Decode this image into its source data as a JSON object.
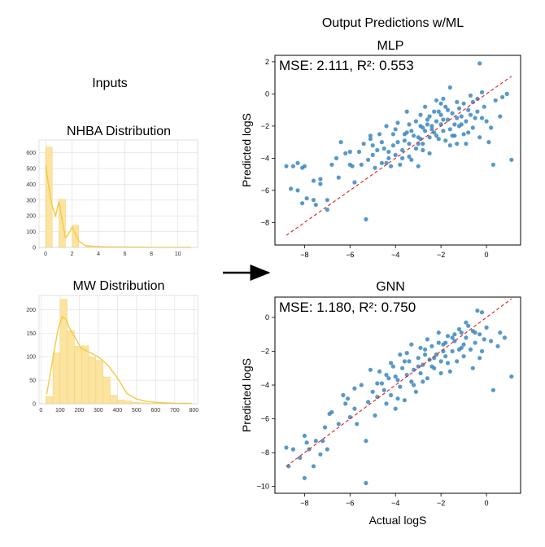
{
  "figure_title": "Output Predictions w/ML",
  "inputs_label": "Inputs",
  "colors": {
    "hist_bar": "#fbe3a0",
    "hist_edge": "#f5cf5e",
    "kde": "#f7c843",
    "scatter": "#3a87c0",
    "diag": "#e41a1c",
    "grid": "#dddddd"
  },
  "chart_data": [
    {
      "type": "bar",
      "title": "NHBA Distribution",
      "xlabel": "",
      "ylabel": "",
      "x_ticks": [
        0,
        2,
        4,
        6,
        8,
        10
      ],
      "y_ticks": [
        0,
        100,
        200,
        300,
        400,
        500,
        600
      ],
      "xlim": [
        -0.5,
        11.5
      ],
      "ylim": [
        0,
        680
      ],
      "bin_start": 0,
      "bin_width": 0.5,
      "values": [
        635,
        0,
        305,
        0,
        140,
        0,
        10,
        0,
        3,
        0,
        1,
        0,
        1,
        0,
        0,
        0,
        0,
        0,
        0,
        0,
        1
      ],
      "kde_x": [
        0,
        0.3,
        0.5,
        0.75,
        1,
        1.25,
        1.5,
        1.75,
        2,
        2.5,
        3,
        3.5,
        4,
        5,
        6,
        7,
        8,
        9,
        10,
        11
      ],
      "kde_y": [
        520,
        350,
        260,
        200,
        290,
        170,
        60,
        90,
        130,
        40,
        12,
        8,
        5,
        3,
        3,
        2,
        1,
        1,
        1,
        1
      ]
    },
    {
      "type": "bar",
      "title": "MW Distribution",
      "xlabel": "",
      "ylabel": "",
      "x_ticks": [
        0,
        100,
        200,
        300,
        400,
        500,
        600,
        700,
        800
      ],
      "y_ticks": [
        0,
        50,
        100,
        150,
        200
      ],
      "xlim": [
        -10,
        820
      ],
      "ylim": [
        0,
        230
      ],
      "bin_start": 25,
      "bin_width": 37.5,
      "values": [
        15,
        108,
        222,
        155,
        122,
        123,
        100,
        92,
        57,
        18,
        8,
        6,
        3,
        2,
        1,
        1,
        1,
        0,
        0,
        1
      ],
      "kde_x": [
        30,
        60,
        90,
        110,
        130,
        150,
        180,
        210,
        250,
        300,
        350,
        400,
        450,
        500,
        550,
        600,
        700,
        790
      ],
      "kde_y": [
        20,
        90,
        160,
        185,
        180,
        160,
        140,
        118,
        110,
        100,
        82,
        55,
        22,
        10,
        5,
        3,
        1,
        1
      ]
    },
    {
      "type": "scatter",
      "title": "MLP",
      "xlabel": "",
      "ylabel": "Predicted logS",
      "annotation": "MSE: 2.111, R²: 0.553",
      "x_ticks": [
        -8,
        -6,
        -4,
        -2,
        0
      ],
      "y_ticks": [
        -8,
        -6,
        -4,
        -2,
        0,
        2
      ],
      "xlim": [
        -9.3,
        1.5
      ],
      "ylim": [
        -9.4,
        2.4
      ],
      "diag": [
        [
          -8.8,
          -8.8
        ],
        [
          1.1,
          1.1
        ]
      ],
      "points": [
        [
          -8.8,
          -4.5
        ],
        [
          -8.5,
          -4.5
        ],
        [
          -8.3,
          -4.3
        ],
        [
          -8.1,
          -4.6
        ],
        [
          -8.0,
          -4.5
        ],
        [
          -8.6,
          -5.9
        ],
        [
          -8.3,
          -6.0
        ],
        [
          -7.9,
          -6.5
        ],
        [
          -8.1,
          -6.8
        ],
        [
          -7.6,
          -6.6
        ],
        [
          -7.5,
          -6.9
        ],
        [
          -7.3,
          -5.3
        ],
        [
          -7.3,
          -5.6
        ],
        [
          -7.0,
          -6.6
        ],
        [
          -7.0,
          -7.2
        ],
        [
          -6.8,
          -4.4
        ],
        [
          -6.5,
          -5.2
        ],
        [
          -6.2,
          -3.7
        ],
        [
          -6.0,
          -3.6
        ],
        [
          -5.9,
          -4.5
        ],
        [
          -5.8,
          -5.5
        ],
        [
          -5.3,
          -7.8
        ],
        [
          -5.5,
          -4.4
        ],
        [
          -5.1,
          -2.6
        ],
        [
          -5.0,
          -3.2
        ],
        [
          -5.0,
          -3.8
        ],
        [
          -4.9,
          -4.6
        ],
        [
          -4.7,
          -2.5
        ],
        [
          -4.6,
          -3.0
        ],
        [
          -4.5,
          -3.4
        ],
        [
          -4.4,
          -4.3
        ],
        [
          -4.3,
          -4.0
        ],
        [
          -4.2,
          -4.5
        ],
        [
          -4.1,
          -3.2
        ],
        [
          -4.0,
          -2.2
        ],
        [
          -3.9,
          -3.0
        ],
        [
          -3.8,
          -4.4
        ],
        [
          -3.7,
          -3.5
        ],
        [
          -3.6,
          -2.9
        ],
        [
          -3.5,
          -2.4
        ],
        [
          -3.4,
          -3.1
        ],
        [
          -3.4,
          -1.9
        ],
        [
          -3.3,
          -4.1
        ],
        [
          -3.2,
          -2.6
        ],
        [
          -3.1,
          -3.4
        ],
        [
          -3.0,
          -2.7
        ],
        [
          -3.0,
          -4.5
        ],
        [
          -2.9,
          -1.3
        ],
        [
          -2.9,
          -2.0
        ],
        [
          -2.8,
          -3.1
        ],
        [
          -2.7,
          -2.3
        ],
        [
          -2.7,
          -0.8
        ],
        [
          -2.6,
          -1.6
        ],
        [
          -2.5,
          -2.7
        ],
        [
          -2.5,
          -3.7
        ],
        [
          -2.4,
          -2.0
        ],
        [
          -2.3,
          -1.1
        ],
        [
          -2.3,
          -2.4
        ],
        [
          -2.2,
          -0.4
        ],
        [
          -2.2,
          -1.7
        ],
        [
          -2.1,
          -2.8
        ],
        [
          -2.0,
          -1.9
        ],
        [
          -2.0,
          -1.3
        ],
        [
          -1.9,
          -2.3
        ],
        [
          -1.8,
          -0.8
        ],
        [
          -1.8,
          -2.9
        ],
        [
          -1.7,
          -1.6
        ],
        [
          -1.6,
          -2.2
        ],
        [
          -1.6,
          0.4
        ],
        [
          -1.5,
          -1.2
        ],
        [
          -1.5,
          -2.6
        ],
        [
          -1.4,
          -1.9
        ],
        [
          -1.3,
          -0.5
        ],
        [
          -1.3,
          -3.1
        ],
        [
          -1.2,
          -2.0
        ],
        [
          -1.1,
          -1.4
        ],
        [
          -1.0,
          -0.6
        ],
        [
          -1.0,
          -2.5
        ],
        [
          -0.9,
          -1.7
        ],
        [
          -0.8,
          -1.0
        ],
        [
          -0.7,
          -0.1
        ],
        [
          -0.6,
          -2.1
        ],
        [
          -0.5,
          -1.5
        ],
        [
          -0.4,
          -0.3
        ],
        [
          -0.3,
          -2.7
        ],
        [
          -0.3,
          1.9
        ],
        [
          -0.2,
          -1.5
        ],
        [
          -0.1,
          -0.8
        ],
        [
          0.0,
          -1.7
        ],
        [
          0.1,
          -3.0
        ],
        [
          0.2,
          -2.1
        ],
        [
          0.3,
          -4.4
        ],
        [
          0.4,
          -0.4
        ],
        [
          0.6,
          -1.4
        ],
        [
          0.7,
          -0.2
        ],
        [
          0.9,
          0.0
        ],
        [
          1.1,
          -4.1
        ],
        [
          -3.5,
          -1.1
        ],
        [
          -4.3,
          -3.6
        ],
        [
          -5.4,
          -3.1
        ],
        [
          -6.4,
          -3.0
        ],
        [
          -5.2,
          -4.1
        ],
        [
          -4.0,
          -3.8
        ],
        [
          -3.6,
          -2.5
        ],
        [
          -2.9,
          -2.8
        ],
        [
          -2.4,
          -2.2
        ],
        [
          -1.9,
          -1.6
        ],
        [
          -1.2,
          -0.9
        ],
        [
          -0.6,
          -0.5
        ],
        [
          -2.6,
          -1.9
        ],
        [
          -3.1,
          -1.7
        ],
        [
          -4.6,
          -4.3
        ],
        [
          -6.0,
          -4.4
        ],
        [
          -4.8,
          -3.5
        ],
        [
          -3.9,
          -1.8
        ],
        [
          -1.4,
          -2.6
        ],
        [
          -0.9,
          -3.1
        ],
        [
          -2.0,
          -0.6
        ],
        [
          -0.4,
          -1.1
        ],
        [
          -3.3,
          -2.3
        ],
        [
          -2.8,
          -3.5
        ],
        [
          -1.7,
          -1.0
        ],
        [
          -4.1,
          -2.5
        ],
        [
          -5.6,
          -3.6
        ],
        [
          -3.7,
          -4.0
        ],
        [
          -2.2,
          -2.6
        ],
        [
          -1.1,
          -1.9
        ],
        [
          -0.2,
          0.1
        ],
        [
          -4.4,
          -2.0
        ],
        [
          -1.6,
          -3.2
        ],
        [
          -2.5,
          -1.4
        ],
        [
          -3.4,
          -3.9
        ],
        [
          -5.1,
          -2.8
        ],
        [
          -0.7,
          -1.3
        ],
        [
          -1.9,
          -0.3
        ],
        [
          -2.8,
          -2.1
        ],
        [
          -6.6,
          -4.0
        ],
        [
          -7.6,
          -5.4
        ],
        [
          -3.0,
          -3.1
        ],
        [
          -2.1,
          -1.1
        ],
        [
          -1.3,
          -1.5
        ],
        [
          -0.8,
          -2.4
        ]
      ]
    },
    {
      "type": "scatter",
      "title": "GNN",
      "xlabel": "Actual logS",
      "ylabel": "Predicted logS",
      "annotation": "MSE: 1.180, R²: 0.750",
      "x_ticks": [
        -8,
        -6,
        -4,
        -2,
        0
      ],
      "y_ticks": [
        -10,
        -8,
        -6,
        -4,
        -2,
        0
      ],
      "xlim": [
        -9.3,
        1.5
      ],
      "ylim": [
        -10.4,
        1.2
      ],
      "diag": [
        [
          -8.8,
          -8.8
        ],
        [
          1.1,
          1.1
        ]
      ],
      "points": [
        [
          -8.8,
          -7.7
        ],
        [
          -8.5,
          -7.8
        ],
        [
          -8.7,
          -8.8
        ],
        [
          -8.2,
          -8.3
        ],
        [
          -8.0,
          -7.0
        ],
        [
          -7.9,
          -7.4
        ],
        [
          -8.0,
          -9.5
        ],
        [
          -7.8,
          -7.8
        ],
        [
          -7.6,
          -8.8
        ],
        [
          -7.3,
          -8.1
        ],
        [
          -7.2,
          -7.3
        ],
        [
          -7.0,
          -7.8
        ],
        [
          -6.9,
          -5.7
        ],
        [
          -6.5,
          -6.3
        ],
        [
          -6.1,
          -4.8
        ],
        [
          -6.0,
          -5.9
        ],
        [
          -5.8,
          -5.4
        ],
        [
          -5.7,
          -6.3
        ],
        [
          -5.3,
          -9.8
        ],
        [
          -5.3,
          -7.3
        ],
        [
          -5.1,
          -3.1
        ],
        [
          -5.0,
          -4.4
        ],
        [
          -4.9,
          -5.8
        ],
        [
          -4.8,
          -4.7
        ],
        [
          -4.6,
          -3.9
        ],
        [
          -4.5,
          -4.3
        ],
        [
          -4.4,
          -5.1
        ],
        [
          -4.3,
          -3.6
        ],
        [
          -4.2,
          -4.6
        ],
        [
          -4.1,
          -2.9
        ],
        [
          -4.0,
          -5.4
        ],
        [
          -3.9,
          -3.7
        ],
        [
          -3.8,
          -4.1
        ],
        [
          -3.7,
          -3.0
        ],
        [
          -3.6,
          -4.9
        ],
        [
          -3.5,
          -3.4
        ],
        [
          -3.4,
          -2.6
        ],
        [
          -3.3,
          -3.8
        ],
        [
          -3.2,
          -3.1
        ],
        [
          -3.1,
          -4.4
        ],
        [
          -3.0,
          -2.4
        ],
        [
          -2.9,
          -3.3
        ],
        [
          -2.8,
          -2.8
        ],
        [
          -2.7,
          -1.9
        ],
        [
          -2.6,
          -3.6
        ],
        [
          -2.5,
          -2.5
        ],
        [
          -2.4,
          -1.7
        ],
        [
          -2.3,
          -3.0
        ],
        [
          -2.2,
          -2.2
        ],
        [
          -2.1,
          -0.9
        ],
        [
          -2.0,
          -2.6
        ],
        [
          -1.9,
          -1.6
        ],
        [
          -1.8,
          -2.3
        ],
        [
          -1.7,
          -1.1
        ],
        [
          -1.6,
          -3.2
        ],
        [
          -1.5,
          -2.0
        ],
        [
          -1.4,
          -1.4
        ],
        [
          -1.3,
          -2.6
        ],
        [
          -1.2,
          -0.7
        ],
        [
          -1.1,
          -1.8
        ],
        [
          -1.0,
          -2.3
        ],
        [
          -0.9,
          -1.2
        ],
        [
          -0.8,
          -0.5
        ],
        [
          -0.7,
          -1.9
        ],
        [
          -0.6,
          -3.0
        ],
        [
          -0.5,
          -1.5
        ],
        [
          -0.4,
          0.4
        ],
        [
          -0.3,
          -1.0
        ],
        [
          -0.2,
          -2.0
        ],
        [
          -0.1,
          -1.3
        ],
        [
          0.0,
          -0.6
        ],
        [
          0.2,
          -1.4
        ],
        [
          0.3,
          -4.3
        ],
        [
          0.5,
          -1.7
        ],
        [
          0.6,
          -0.9
        ],
        [
          0.8,
          -1.2
        ],
        [
          1.1,
          -3.5
        ],
        [
          -3.8,
          -2.2
        ],
        [
          -4.7,
          -3.2
        ],
        [
          -5.2,
          -5.0
        ],
        [
          -6.3,
          -4.6
        ],
        [
          -3.3,
          -1.6
        ],
        [
          -2.8,
          -3.8
        ],
        [
          -2.4,
          -2.9
        ],
        [
          -1.9,
          -2.0
        ],
        [
          -1.4,
          -1.0
        ],
        [
          -1.0,
          -1.6
        ],
        [
          -0.6,
          -0.8
        ],
        [
          -2.6,
          -1.3
        ],
        [
          -3.5,
          -2.1
        ],
        [
          -4.2,
          -2.7
        ],
        [
          -5.5,
          -4.0
        ],
        [
          -6.8,
          -5.6
        ],
        [
          -7.5,
          -7.3
        ],
        [
          -1.7,
          -2.7
        ],
        [
          -2.1,
          -1.5
        ],
        [
          -3.0,
          -2.9
        ],
        [
          -3.9,
          -4.8
        ],
        [
          -0.9,
          -0.3
        ],
        [
          -0.3,
          -2.4
        ],
        [
          -1.2,
          -1.9
        ],
        [
          -2.3,
          -2.4
        ],
        [
          -4.4,
          -3.4
        ],
        [
          -5.8,
          -4.2
        ],
        [
          -3.6,
          -2.6
        ],
        [
          -2.7,
          -2.2
        ],
        [
          -1.5,
          -1.2
        ],
        [
          -0.5,
          -0.9
        ],
        [
          -4.8,
          -3.9
        ],
        [
          -3.2,
          -4.0
        ],
        [
          -2.0,
          -3.3
        ],
        [
          -6.2,
          -5.1
        ],
        [
          -7.1,
          -6.5
        ],
        [
          -1.8,
          -1.5
        ],
        [
          -2.9,
          -1.8
        ],
        [
          -4.0,
          -3.5
        ],
        [
          -1.1,
          -0.9
        ],
        [
          -0.2,
          0.3
        ]
      ]
    }
  ]
}
